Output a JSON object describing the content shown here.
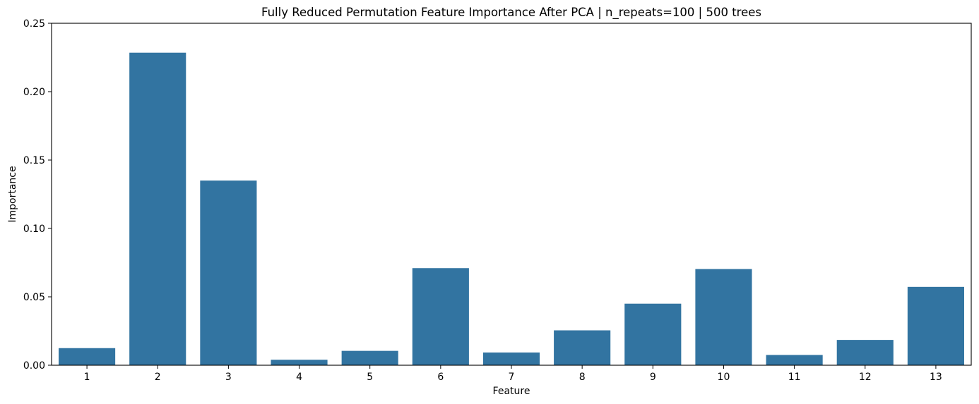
{
  "chart_data": {
    "type": "bar",
    "title": "Fully Reduced Permutation Feature Importance After PCA | n_repeats=100 | 500 trees",
    "xlabel": "Feature",
    "ylabel": "Importance",
    "categories": [
      "1",
      "2",
      "3",
      "4",
      "5",
      "6",
      "7",
      "8",
      "9",
      "10",
      "11",
      "12",
      "13"
    ],
    "values": [
      0.0125,
      0.2285,
      0.135,
      0.004,
      0.0105,
      0.071,
      0.0093,
      0.0255,
      0.045,
      0.0703,
      0.0075,
      0.0185,
      0.0573
    ],
    "ylim": [
      0,
      0.25
    ],
    "yticks": [
      "0.00",
      "0.05",
      "0.10",
      "0.15",
      "0.20",
      "0.25"
    ],
    "grid": false,
    "color": "#3274a1"
  }
}
